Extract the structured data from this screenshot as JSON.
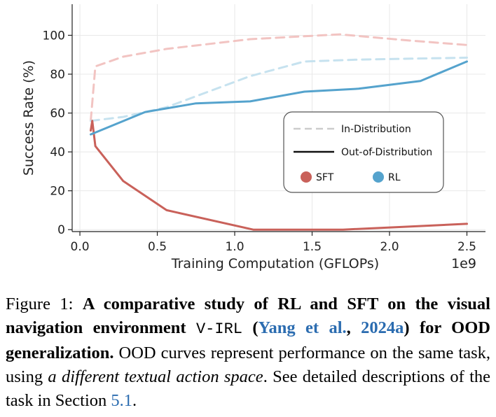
{
  "chart_data": {
    "type": "line",
    "xlabel": "Training Computation (GFLOPs)",
    "x_scale_label": "1e9",
    "ylabel": "Success Rate (%)",
    "xlim": [
      -0.05,
      2.62
    ],
    "ylim": [
      -1,
      116
    ],
    "x_ticks": [
      0.0,
      0.5,
      1.0,
      1.5,
      2.0,
      2.5
    ],
    "x_tick_labels": [
      "0.0",
      "0.5",
      "1.0",
      "1.5",
      "2.0",
      "2.5"
    ],
    "y_ticks": [
      0,
      20,
      40,
      60,
      80,
      100
    ],
    "y_tick_labels": [
      "0",
      "20",
      "40",
      "60",
      "80",
      "100"
    ],
    "grid": true,
    "series": [
      {
        "name": "SFT In-Distribution",
        "method": "SFT",
        "split": "in",
        "color": "#f2c4c2",
        "x": [
          0.07,
          0.1,
          0.28,
          0.56,
          1.1,
          1.45,
          1.68,
          2.1,
          2.5
        ],
        "y": [
          56,
          84,
          89,
          93,
          98,
          99.5,
          100.5,
          97.5,
          95
        ]
      },
      {
        "name": "RL In-Distribution",
        "method": "RL",
        "split": "in",
        "color": "#c6e2ef",
        "x": [
          0.07,
          0.28,
          0.56,
          1.1,
          1.45,
          1.8,
          2.5
        ],
        "y": [
          56,
          58,
          63,
          79,
          86.5,
          87.5,
          88.5
        ]
      },
      {
        "name": "SFT Out-of-Distribution",
        "method": "SFT",
        "split": "out",
        "color": "#c9615a",
        "x": [
          0.07,
          0.08,
          0.1,
          0.28,
          0.56,
          1.12,
          1.45,
          1.7,
          2.1,
          2.5
        ],
        "y": [
          51,
          56,
          43,
          25,
          10,
          0,
          0,
          0,
          1.5,
          3
        ]
      },
      {
        "name": "RL Out-of-Distribution",
        "method": "RL",
        "split": "out",
        "color": "#55a3cd",
        "x": [
          0.07,
          0.42,
          0.75,
          1.1,
          1.45,
          1.8,
          2.2,
          2.5
        ],
        "y": [
          49,
          60.5,
          65,
          66,
          71,
          72.5,
          76.5,
          86.5
        ]
      }
    ],
    "legend": {
      "placement": "center-right",
      "linestyle_entries": [
        {
          "label": "In-Distribution",
          "style": "dashed"
        },
        {
          "label": "Out-of-Distribution",
          "style": "solid"
        }
      ],
      "color_entries": [
        {
          "label": "SFT",
          "color": "#c9615a"
        },
        {
          "label": "RL",
          "color": "#55a3cd"
        }
      ]
    }
  },
  "caption": {
    "label": "Figure 1: ",
    "bold_1": "A comparative study of RL and SFT on the visual navigation environment",
    "space_1": " ",
    "mono": "V-IRL",
    "paren_open": " (",
    "cite_author": "Yang et al.",
    "cite_sep": ", ",
    "cite_year": "2024a",
    "paren_close": ")",
    "bold_2": " for OOD generalization.",
    "text_1": " OOD curves represent performance on the same task, using ",
    "italic": "a different textual action space",
    "text_2": ". See detailed descriptions of the task in Section ",
    "section_ref": "5.1",
    "text_3": "."
  }
}
